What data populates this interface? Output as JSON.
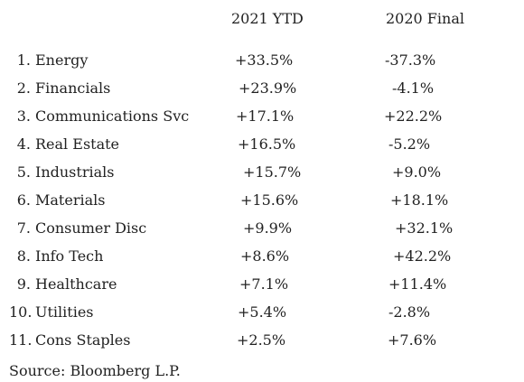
{
  "header": {
    "col_ytd": "2021 YTD",
    "col_final": "2020 Final"
  },
  "rows": [
    {
      "num": "1.",
      "sector": "Energy",
      "ytd": "+33.5%",
      "final": "-37.3%"
    },
    {
      "num": "2.",
      "sector": "Financials",
      "ytd": "+23.9%",
      "final": "-4.1%"
    },
    {
      "num": "3.",
      "sector": "Communications Svc",
      "ytd": "+17.1%",
      "final": "+22.2%"
    },
    {
      "num": "4.",
      "sector": "Real Estate",
      "ytd": "+16.5%",
      "final": "-5.2%"
    },
    {
      "num": "5.",
      "sector": "Industrials",
      "ytd": "+15.7%",
      "final": "+9.0%"
    },
    {
      "num": "6.",
      "sector": "Materials",
      "ytd": "+15.6%",
      "final": "+18.1%"
    },
    {
      "num": "7.",
      "sector": "Consumer Disc",
      "ytd": "+9.9%",
      "final": "+32.1%"
    },
    {
      "num": "8.",
      "sector": "Info Tech",
      "ytd": "+8.6%",
      "final": "+42.2%"
    },
    {
      "num": "9.",
      "sector": "Healthcare",
      "ytd": "+7.1%",
      "final": "+11.4%"
    },
    {
      "num": "10.",
      "sector": "Utilities",
      "ytd": "+5.4%",
      "final": "-2.8%"
    },
    {
      "num": "11.",
      "sector": "Cons Staples",
      "ytd": "+2.5%",
      "final": "+7.6%"
    }
  ],
  "source": "Source: Bloomberg L.P."
}
